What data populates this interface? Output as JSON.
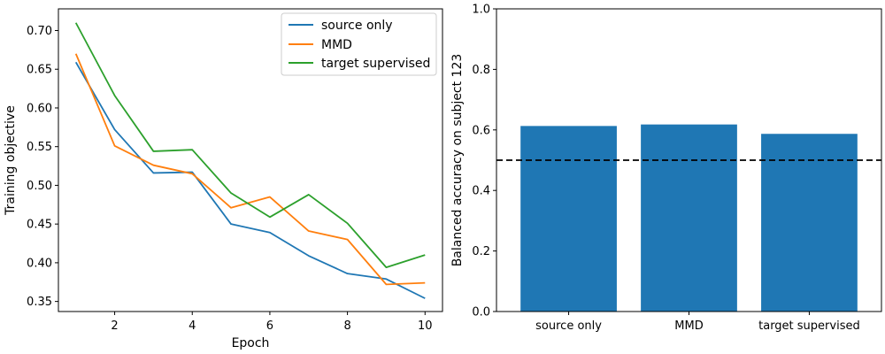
{
  "chart_data": [
    {
      "type": "line",
      "xlabel": "Epoch",
      "ylabel": "Training objective",
      "xlim": [
        0.55,
        10.45
      ],
      "ylim": [
        0.337,
        0.728
      ],
      "xticks": [
        2,
        4,
        6,
        8,
        10
      ],
      "yticks": [
        0.35,
        0.4,
        0.45,
        0.5,
        0.55,
        0.6,
        0.65,
        0.7
      ],
      "x": [
        1,
        2,
        3,
        4,
        5,
        6,
        7,
        8,
        9,
        10
      ],
      "grid": false,
      "legend_position": "top-right",
      "series": [
        {
          "name": "source only",
          "color": "#1f77b4",
          "values": [
            0.659,
            0.572,
            0.516,
            0.517,
            0.45,
            0.439,
            0.409,
            0.386,
            0.379,
            0.354
          ]
        },
        {
          "name": "MMD",
          "color": "#ff7f0e",
          "values": [
            0.67,
            0.551,
            0.526,
            0.515,
            0.471,
            0.485,
            0.441,
            0.43,
            0.372,
            0.374
          ]
        },
        {
          "name": "target supervised",
          "color": "#2ca02c",
          "values": [
            0.71,
            0.616,
            0.544,
            0.546,
            0.49,
            0.459,
            0.488,
            0.451,
            0.394,
            0.41
          ]
        }
      ]
    },
    {
      "type": "bar",
      "xlabel": "",
      "ylabel": "Balanced accuracy on subject 123",
      "ylim": [
        0.0,
        1.0
      ],
      "yticks": [
        0.0,
        0.2,
        0.4,
        0.6,
        0.8,
        1.0
      ],
      "categories": [
        "source only",
        "MMD",
        "target supervised"
      ],
      "values": [
        0.613,
        0.618,
        0.587
      ],
      "bar_color": "#1f77b4",
      "reference_line": {
        "value": 0.5,
        "style": "dashed",
        "color": "#000000"
      },
      "grid": false
    }
  ]
}
